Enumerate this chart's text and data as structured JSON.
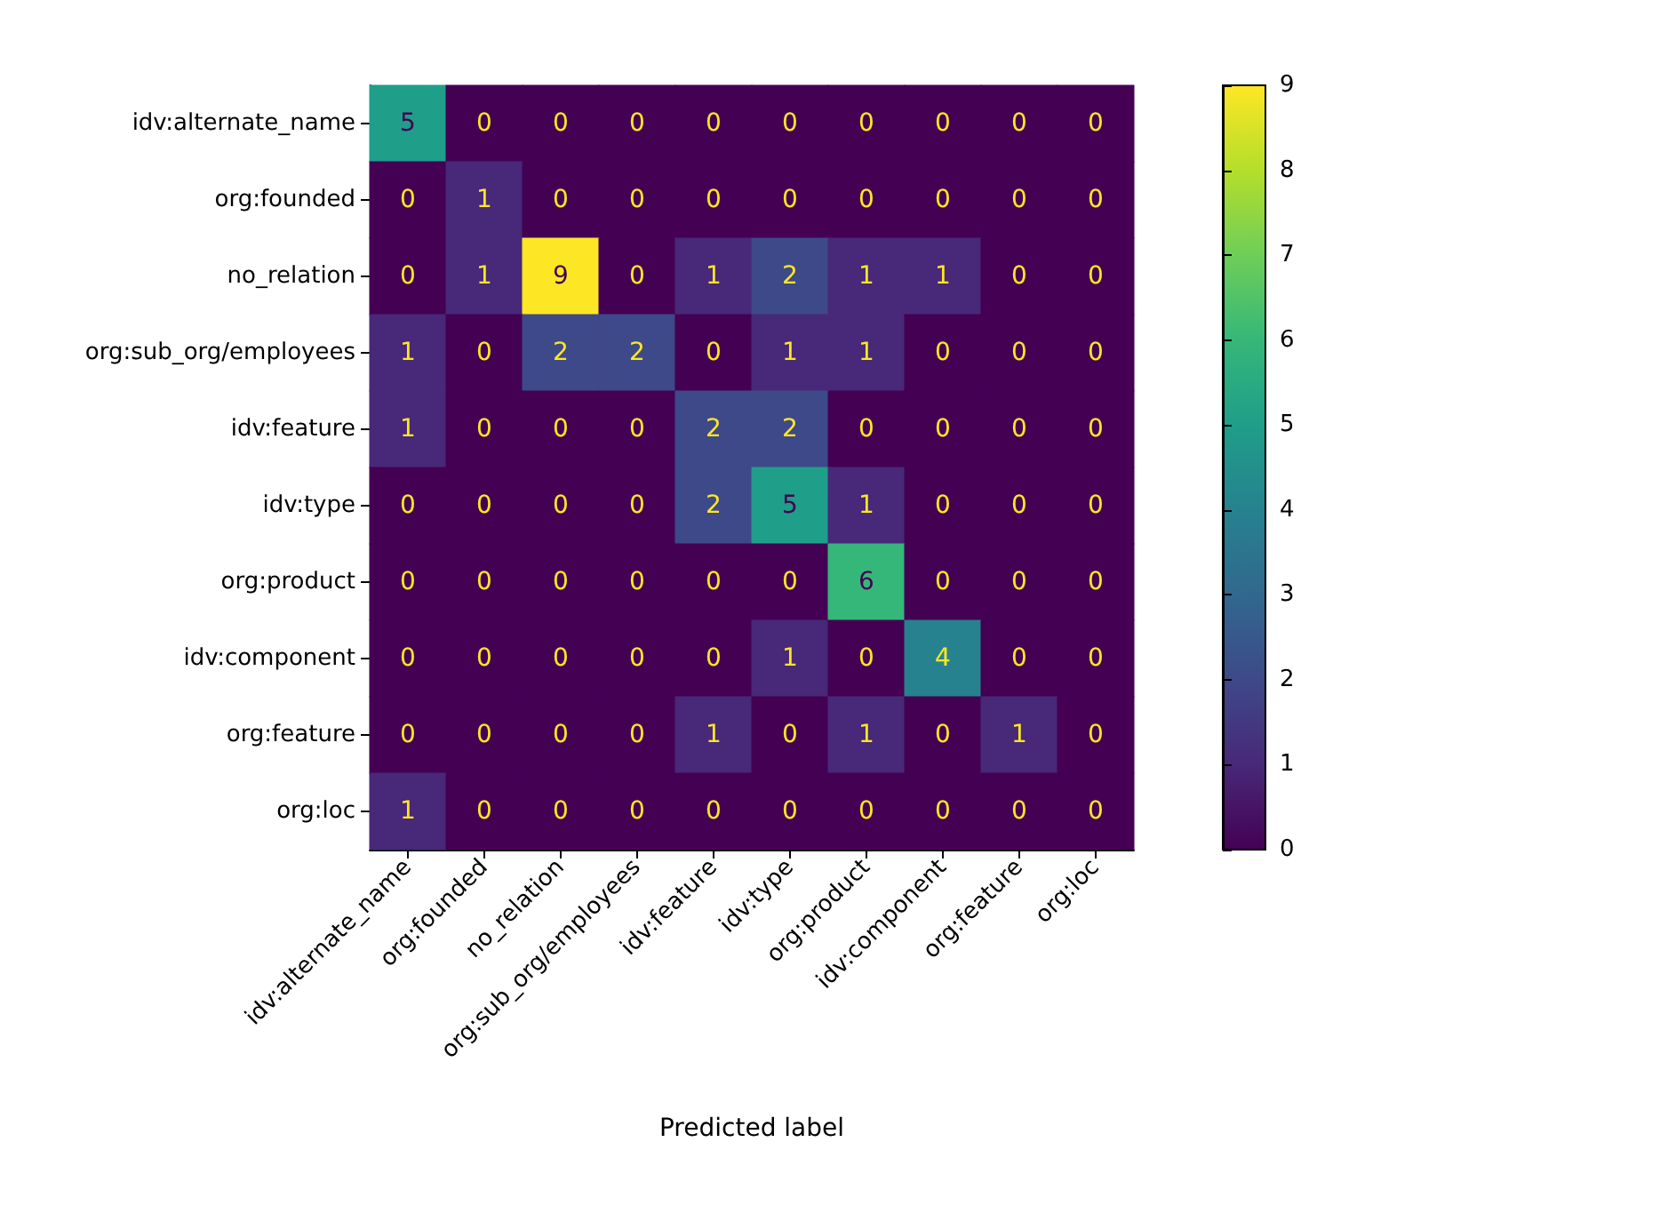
{
  "chart_data": {
    "type": "heatmap",
    "xlabel": "Predicted label",
    "categories": [
      "idv:alternate_name",
      "org:founded",
      "no_relation",
      "org:sub_org/employees",
      "idv:feature",
      "idv:type",
      "org:product",
      "idv:component",
      "org:feature",
      "org:loc"
    ],
    "y_categories": [
      "idv:alternate_name",
      "org:founded",
      "no_relation",
      "org:sub_org/employees",
      "idv:feature",
      "idv:type",
      "org:product",
      "idv:component",
      "org:feature",
      "org:loc"
    ],
    "cells": [
      [
        5,
        0,
        0,
        0,
        0,
        0,
        0,
        0,
        0,
        0
      ],
      [
        0,
        1,
        0,
        0,
        0,
        0,
        0,
        0,
        0,
        0
      ],
      [
        0,
        1,
        9,
        0,
        1,
        2,
        1,
        1,
        0,
        0
      ],
      [
        1,
        0,
        2,
        2,
        0,
        1,
        1,
        0,
        0,
        0
      ],
      [
        1,
        0,
        0,
        0,
        2,
        2,
        0,
        0,
        0,
        0
      ],
      [
        0,
        0,
        0,
        0,
        2,
        5,
        1,
        0,
        0,
        0
      ],
      [
        0,
        0,
        0,
        0,
        0,
        0,
        6,
        0,
        0,
        0
      ],
      [
        0,
        0,
        0,
        0,
        0,
        1,
        0,
        4,
        0,
        0
      ],
      [
        0,
        0,
        0,
        0,
        1,
        0,
        1,
        0,
        1,
        0
      ],
      [
        1,
        0,
        0,
        0,
        0,
        0,
        0,
        0,
        0,
        0
      ]
    ],
    "clim": [
      0,
      9
    ],
    "cticks": [
      0,
      1,
      2,
      3,
      4,
      5,
      6,
      7,
      8,
      9
    ],
    "data_labels": true
  }
}
